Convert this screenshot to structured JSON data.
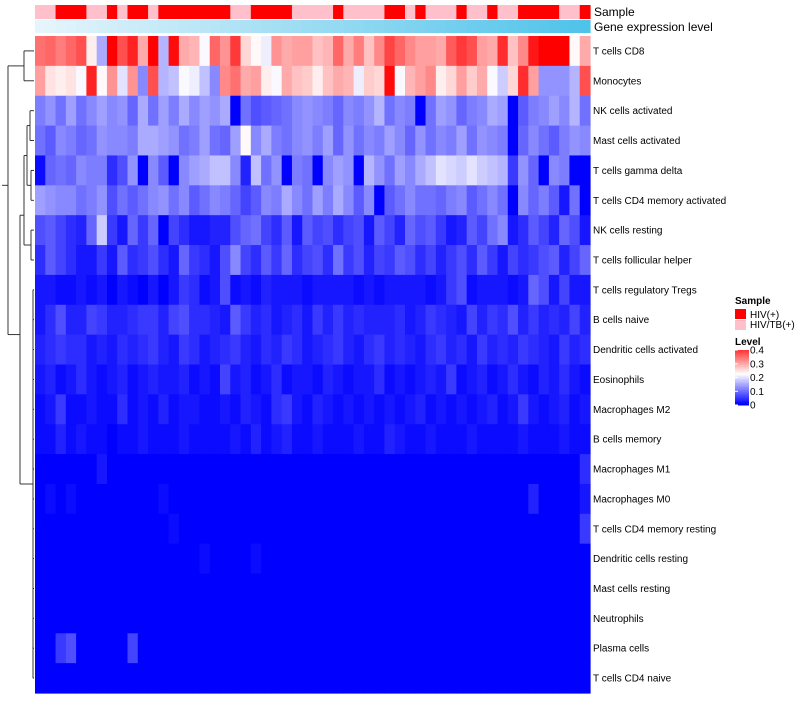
{
  "annotation_titles": {
    "sample": "Sample",
    "gene_expression": "Gene expression level"
  },
  "legend": {
    "sample_title": "Sample",
    "sample_items": [
      {
        "label": "HIV(+)",
        "color": "#ff0000"
      },
      {
        "label": "HIV/TB(+)",
        "color": "#ffc0cb"
      }
    ],
    "level_title": "Level",
    "level_ticks": [
      "0.4",
      "0.3",
      "0.2",
      "0.1",
      "0"
    ],
    "level_tick_values": [
      0.4,
      0.3,
      0.2,
      0.1,
      0
    ]
  },
  "colors": {
    "low": "#0000ff",
    "mid": "#ffffff",
    "high": "#ff0000",
    "hiv": "#ff0000",
    "hivtb": "#ffc0cb",
    "gene_low": "#e6f5fb",
    "gene_high": "#4fc3ea",
    "dendrogram": "#222222"
  },
  "chart_data": {
    "type": "heatmap",
    "title": "",
    "color_scale_max": 0.45,
    "row_labels": [
      "T cells CD8",
      "Monocytes",
      "NK cells activated",
      "Mast cells activated",
      "T cells gamma delta",
      "T cells CD4 memory activated",
      "NK cells resting",
      "T cells follicular helper",
      "T cells regulatory  Tregs",
      "B cells naive",
      "Dendritic cells activated",
      "Eosinophils",
      "Macrophages M2",
      "B cells memory",
      "Macrophages M1",
      "Macrophages M0",
      "T cells CD4 memory resting",
      "Dendritic cells resting",
      "Mast cells resting",
      "Neutrophils",
      "Plasma cells",
      "T cells CD4 naive"
    ],
    "sample_groups": [
      "HIV/TB(+)",
      "HIV/TB(+)",
      "HIV(+)",
      "HIV(+)",
      "HIV(+)",
      "HIV/TB(+)",
      "HIV/TB(+)",
      "HIV(+)",
      "HIV/TB(+)",
      "HIV(+)",
      "HIV(+)",
      "HIV/TB(+)",
      "HIV(+)",
      "HIV(+)",
      "HIV(+)",
      "HIV(+)",
      "HIV(+)",
      "HIV(+)",
      "HIV(+)",
      "HIV/TB(+)",
      "HIV/TB(+)",
      "HIV(+)",
      "HIV(+)",
      "HIV(+)",
      "HIV(+)",
      "HIV/TB(+)",
      "HIV/TB(+)",
      "HIV/TB(+)",
      "HIV/TB(+)",
      "HIV(+)",
      "HIV/TB(+)",
      "HIV/TB(+)",
      "HIV/TB(+)",
      "HIV/TB(+)",
      "HIV(+)",
      "HIV(+)",
      "HIV/TB(+)",
      "HIV(+)",
      "HIV/TB(+)",
      "HIV/TB(+)",
      "HIV/TB(+)",
      "HIV(+)",
      "HIV/TB(+)",
      "HIV/TB(+)",
      "HIV(+)",
      "HIV/TB(+)",
      "HIV/TB(+)",
      "HIV(+)",
      "HIV(+)",
      "HIV(+)",
      "HIV(+)",
      "HIV/TB(+)",
      "HIV/TB(+)",
      "HIV(+)"
    ],
    "gene_expression_level": [
      0.0,
      0.019,
      0.038,
      0.057,
      0.075,
      0.094,
      0.113,
      0.132,
      0.151,
      0.17,
      0.189,
      0.208,
      0.226,
      0.245,
      0.264,
      0.283,
      0.302,
      0.321,
      0.34,
      0.358,
      0.377,
      0.396,
      0.415,
      0.434,
      0.453,
      0.472,
      0.491,
      0.509,
      0.528,
      0.547,
      0.566,
      0.585,
      0.604,
      0.623,
      0.642,
      0.66,
      0.679,
      0.698,
      0.717,
      0.736,
      0.755,
      0.774,
      0.792,
      0.811,
      0.83,
      0.849,
      0.868,
      0.887,
      0.906,
      0.925,
      0.943,
      0.962,
      0.981,
      1.0
    ],
    "values": [
      [
        0.35,
        0.36,
        0.34,
        0.36,
        0.38,
        0.24,
        0.15,
        0.45,
        0.38,
        0.42,
        0.3,
        0.45,
        0.16,
        0.44,
        0.3,
        0.29,
        0.22,
        0.36,
        0.32,
        0.4,
        0.26,
        0.23,
        0.21,
        0.32,
        0.3,
        0.31,
        0.31,
        0.28,
        0.29,
        0.36,
        0.3,
        0.34,
        0.28,
        0.33,
        0.39,
        0.36,
        0.33,
        0.31,
        0.31,
        0.3,
        0.37,
        0.4,
        0.38,
        0.31,
        0.3,
        0.41,
        0.28,
        0.33,
        0.43,
        0.45,
        0.45,
        0.45,
        0.23,
        0.3
      ],
      [
        0.31,
        0.25,
        0.24,
        0.25,
        0.22,
        0.42,
        0.23,
        0.32,
        0.2,
        0.32,
        0.12,
        0.38,
        0.16,
        0.17,
        0.22,
        0.21,
        0.17,
        0.12,
        0.33,
        0.35,
        0.3,
        0.31,
        0.24,
        0.22,
        0.3,
        0.28,
        0.27,
        0.24,
        0.28,
        0.3,
        0.29,
        0.21,
        0.27,
        0.26,
        0.44,
        0.22,
        0.29,
        0.31,
        0.33,
        0.24,
        0.26,
        0.31,
        0.27,
        0.3,
        0.22,
        0.18,
        0.26,
        0.41,
        0.31,
        0.13,
        0.13,
        0.13,
        0.16,
        0.38
      ],
      [
        0.11,
        0.13,
        0.1,
        0.14,
        0.1,
        0.12,
        0.14,
        0.12,
        0.13,
        0.09,
        0.15,
        0.1,
        0.14,
        0.11,
        0.15,
        0.12,
        0.14,
        0.13,
        0.15,
        0.0,
        0.1,
        0.07,
        0.08,
        0.09,
        0.1,
        0.12,
        0.13,
        0.12,
        0.11,
        0.09,
        0.12,
        0.11,
        0.13,
        0.16,
        0.1,
        0.12,
        0.11,
        0.0,
        0.1,
        0.14,
        0.13,
        0.09,
        0.11,
        0.12,
        0.15,
        0.14,
        0.0,
        0.08,
        0.11,
        0.12,
        0.14,
        0.12,
        0.16,
        0.1
      ],
      [
        0.1,
        0.08,
        0.12,
        0.11,
        0.09,
        0.1,
        0.13,
        0.12,
        0.12,
        0.11,
        0.15,
        0.15,
        0.14,
        0.13,
        0.1,
        0.11,
        0.14,
        0.1,
        0.09,
        0.14,
        0.23,
        0.12,
        0.15,
        0.11,
        0.1,
        0.12,
        0.13,
        0.11,
        0.14,
        0.09,
        0.13,
        0.1,
        0.12,
        0.11,
        0.14,
        0.12,
        0.09,
        0.13,
        0.1,
        0.12,
        0.11,
        0.14,
        0.1,
        0.13,
        0.12,
        0.11,
        0.0,
        0.09,
        0.12,
        0.1,
        0.08,
        0.11,
        0.13,
        0.12
      ],
      [
        0.01,
        0.09,
        0.1,
        0.09,
        0.12,
        0.11,
        0.11,
        0.04,
        0.07,
        0.13,
        0.0,
        0.12,
        0.08,
        0.0,
        0.12,
        0.14,
        0.15,
        0.17,
        0.17,
        0.12,
        0.03,
        0.17,
        0.1,
        0.13,
        0.0,
        0.11,
        0.1,
        0.0,
        0.12,
        0.14,
        0.13,
        0.0,
        0.16,
        0.13,
        0.1,
        0.14,
        0.12,
        0.15,
        0.17,
        0.2,
        0.19,
        0.18,
        0.2,
        0.18,
        0.17,
        0.16,
        0.05,
        0.13,
        0.09,
        0.0,
        0.12,
        0.11,
        0.0,
        0.0
      ],
      [
        0.14,
        0.13,
        0.12,
        0.12,
        0.1,
        0.11,
        0.13,
        0.07,
        0.1,
        0.08,
        0.1,
        0.12,
        0.13,
        0.1,
        0.12,
        0.08,
        0.1,
        0.12,
        0.11,
        0.09,
        0.06,
        0.08,
        0.12,
        0.11,
        0.15,
        0.12,
        0.1,
        0.14,
        0.11,
        0.15,
        0.12,
        0.08,
        0.12,
        0.0,
        0.08,
        0.1,
        0.12,
        0.1,
        0.1,
        0.09,
        0.11,
        0.12,
        0.08,
        0.1,
        0.12,
        0.1,
        0.0,
        0.12,
        0.09,
        0.11,
        0.08,
        0.02,
        0.1,
        0.0
      ],
      [
        0.07,
        0.08,
        0.06,
        0.04,
        0.03,
        0.09,
        0.18,
        0.05,
        0.02,
        0.09,
        0.05,
        0.09,
        0.0,
        0.06,
        0.04,
        0.02,
        0.02,
        0.03,
        0.03,
        0.07,
        0.09,
        0.1,
        0.06,
        0.04,
        0.08,
        0.02,
        0.08,
        0.06,
        0.07,
        0.04,
        0.06,
        0.07,
        0.02,
        0.08,
        0.06,
        0.03,
        0.09,
        0.07,
        0.08,
        0.05,
        0.02,
        0.03,
        0.08,
        0.06,
        0.1,
        0.12,
        0.02,
        0.04,
        0.08,
        0.06,
        0.03,
        0.09,
        0.07,
        0.02
      ],
      [
        0.04,
        0.08,
        0.06,
        0.04,
        0.02,
        0.02,
        0.05,
        0.02,
        0.08,
        0.04,
        0.05,
        0.07,
        0.04,
        0.02,
        0.09,
        0.05,
        0.04,
        0.02,
        0.07,
        0.12,
        0.06,
        0.04,
        0.08,
        0.05,
        0.09,
        0.04,
        0.06,
        0.07,
        0.04,
        0.1,
        0.05,
        0.07,
        0.03,
        0.06,
        0.05,
        0.08,
        0.07,
        0.04,
        0.06,
        0.03,
        0.05,
        0.07,
        0.04,
        0.08,
        0.05,
        0.02,
        0.06,
        0.04,
        0.05,
        0.07,
        0.08,
        0.03,
        0.06,
        0.09
      ],
      [
        0.02,
        0.02,
        0.01,
        0.01,
        0.02,
        0.01,
        0.02,
        0.0,
        0.02,
        0.01,
        0.0,
        0.02,
        0.0,
        0.02,
        0.05,
        0.04,
        0.01,
        0.02,
        0.07,
        0.01,
        0.02,
        0.01,
        0.03,
        0.02,
        0.02,
        0.02,
        0.01,
        0.02,
        0.02,
        0.02,
        0.02,
        0.01,
        0.02,
        0.01,
        0.02,
        0.02,
        0.02,
        0.02,
        0.01,
        0.02,
        0.05,
        0.07,
        0.01,
        0.02,
        0.02,
        0.02,
        0.01,
        0.02,
        0.09,
        0.07,
        0.02,
        0.06,
        0.02,
        0.02
      ],
      [
        0.02,
        0.04,
        0.07,
        0.03,
        0.03,
        0.06,
        0.05,
        0.03,
        0.03,
        0.04,
        0.05,
        0.05,
        0.03,
        0.06,
        0.07,
        0.04,
        0.04,
        0.03,
        0.02,
        0.08,
        0.05,
        0.03,
        0.04,
        0.02,
        0.03,
        0.04,
        0.02,
        0.05,
        0.03,
        0.05,
        0.03,
        0.04,
        0.03,
        0.03,
        0.03,
        0.04,
        0.02,
        0.03,
        0.05,
        0.04,
        0.03,
        0.02,
        0.06,
        0.03,
        0.05,
        0.04,
        0.07,
        0.03,
        0.05,
        0.03,
        0.04,
        0.03,
        0.06,
        0.03
      ],
      [
        0.03,
        0.04,
        0.05,
        0.04,
        0.04,
        0.02,
        0.03,
        0.02,
        0.04,
        0.03,
        0.04,
        0.05,
        0.03,
        0.02,
        0.05,
        0.04,
        0.02,
        0.03,
        0.04,
        0.05,
        0.03,
        0.02,
        0.04,
        0.03,
        0.05,
        0.04,
        0.02,
        0.03,
        0.04,
        0.05,
        0.03,
        0.02,
        0.04,
        0.05,
        0.03,
        0.04,
        0.03,
        0.02,
        0.04,
        0.05,
        0.03,
        0.04,
        0.02,
        0.05,
        0.03,
        0.04,
        0.03,
        0.05,
        0.04,
        0.03,
        0.02,
        0.05,
        0.03,
        0.04
      ],
      [
        0.02,
        0.03,
        0.01,
        0.02,
        0.04,
        0.02,
        0.01,
        0.02,
        0.03,
        0.01,
        0.02,
        0.03,
        0.02,
        0.02,
        0.03,
        0.01,
        0.02,
        0.01,
        0.06,
        0.02,
        0.03,
        0.01,
        0.02,
        0.04,
        0.01,
        0.02,
        0.02,
        0.01,
        0.03,
        0.02,
        0.01,
        0.02,
        0.02,
        0.04,
        0.01,
        0.02,
        0.01,
        0.02,
        0.03,
        0.02,
        0.05,
        0.01,
        0.02,
        0.03,
        0.01,
        0.02,
        0.04,
        0.02,
        0.01,
        0.03,
        0.02,
        0.04,
        0.02,
        0.01
      ],
      [
        0.01,
        0.02,
        0.05,
        0.01,
        0.01,
        0.02,
        0.01,
        0.01,
        0.04,
        0.01,
        0.02,
        0.01,
        0.03,
        0.01,
        0.02,
        0.02,
        0.01,
        0.01,
        0.02,
        0.01,
        0.03,
        0.02,
        0.01,
        0.04,
        0.05,
        0.02,
        0.01,
        0.03,
        0.02,
        0.01,
        0.02,
        0.01,
        0.02,
        0.01,
        0.02,
        0.01,
        0.02,
        0.03,
        0.01,
        0.02,
        0.01,
        0.02,
        0.01,
        0.02,
        0.03,
        0.01,
        0.02,
        0.05,
        0.02,
        0.01,
        0.02,
        0.03,
        0.01,
        0.02
      ],
      [
        0.01,
        0.01,
        0.03,
        0.01,
        0.02,
        0.01,
        0.01,
        0.0,
        0.01,
        0.01,
        0.02,
        0.01,
        0.01,
        0.01,
        0.02,
        0.01,
        0.01,
        0.01,
        0.01,
        0.02,
        0.01,
        0.03,
        0.01,
        0.02,
        0.03,
        0.01,
        0.01,
        0.02,
        0.01,
        0.01,
        0.01,
        0.02,
        0.01,
        0.01,
        0.03,
        0.02,
        0.01,
        0.01,
        0.02,
        0.01,
        0.01,
        0.01,
        0.02,
        0.01,
        0.01,
        0.01,
        0.01,
        0.02,
        0.01,
        0.01,
        0.01,
        0.02,
        0.01,
        0.01
      ],
      [
        0.0,
        0.0,
        0.0,
        0.0,
        0.0,
        0.0,
        0.02,
        0.0,
        0.0,
        0.0,
        0.0,
        0.0,
        0.0,
        0.0,
        0.0,
        0.0,
        0.0,
        0.0,
        0.0,
        0.0,
        0.0,
        0.0,
        0.0,
        0.0,
        0.0,
        0.0,
        0.0,
        0.0,
        0.0,
        0.0,
        0.0,
        0.0,
        0.0,
        0.0,
        0.0,
        0.0,
        0.0,
        0.0,
        0.0,
        0.0,
        0.0,
        0.0,
        0.0,
        0.0,
        0.0,
        0.0,
        0.0,
        0.0,
        0.0,
        0.0,
        0.0,
        0.0,
        0.0,
        0.04
      ],
      [
        0.0,
        0.01,
        0.0,
        0.01,
        0.0,
        0.0,
        0.0,
        0.0,
        0.0,
        0.0,
        0.0,
        0.0,
        0.01,
        0.0,
        0.0,
        0.0,
        0.0,
        0.0,
        0.0,
        0.0,
        0.0,
        0.0,
        0.0,
        0.0,
        0.0,
        0.0,
        0.0,
        0.0,
        0.0,
        0.0,
        0.0,
        0.0,
        0.0,
        0.0,
        0.0,
        0.0,
        0.0,
        0.0,
        0.0,
        0.0,
        0.0,
        0.0,
        0.0,
        0.0,
        0.0,
        0.0,
        0.0,
        0.0,
        0.03,
        0.0,
        0.0,
        0.0,
        0.0,
        0.02
      ],
      [
        0.0,
        0.0,
        0.0,
        0.0,
        0.0,
        0.0,
        0.0,
        0.0,
        0.0,
        0.0,
        0.0,
        0.0,
        0.0,
        0.01,
        0.0,
        0.0,
        0.0,
        0.0,
        0.0,
        0.0,
        0.0,
        0.0,
        0.0,
        0.0,
        0.0,
        0.0,
        0.0,
        0.0,
        0.0,
        0.0,
        0.0,
        0.0,
        0.0,
        0.0,
        0.0,
        0.0,
        0.0,
        0.0,
        0.0,
        0.0,
        0.0,
        0.0,
        0.0,
        0.0,
        0.0,
        0.0,
        0.0,
        0.0,
        0.0,
        0.0,
        0.0,
        0.0,
        0.0,
        0.05
      ],
      [
        0.0,
        0.0,
        0.0,
        0.0,
        0.0,
        0.0,
        0.0,
        0.0,
        0.0,
        0.0,
        0.0,
        0.0,
        0.0,
        0.0,
        0.0,
        0.0,
        0.01,
        0.0,
        0.0,
        0.0,
        0.0,
        0.01,
        0.0,
        0.0,
        0.0,
        0.0,
        0.0,
        0.0,
        0.0,
        0.0,
        0.0,
        0.0,
        0.0,
        0.0,
        0.0,
        0.0,
        0.0,
        0.0,
        0.0,
        0.0,
        0.0,
        0.0,
        0.0,
        0.0,
        0.0,
        0.0,
        0.0,
        0.0,
        0.0,
        0.0,
        0.0,
        0.0,
        0.0,
        0.0
      ],
      [
        0.0,
        0.0,
        0.0,
        0.0,
        0.0,
        0.0,
        0.0,
        0.0,
        0.0,
        0.0,
        0.0,
        0.0,
        0.0,
        0.0,
        0.0,
        0.0,
        0.0,
        0.0,
        0.0,
        0.0,
        0.0,
        0.0,
        0.0,
        0.0,
        0.0,
        0.0,
        0.0,
        0.0,
        0.0,
        0.0,
        0.0,
        0.0,
        0.0,
        0.0,
        0.0,
        0.0,
        0.0,
        0.0,
        0.0,
        0.0,
        0.0,
        0.0,
        0.0,
        0.0,
        0.0,
        0.0,
        0.0,
        0.0,
        0.0,
        0.0,
        0.0,
        0.0,
        0.0,
        0.0
      ],
      [
        0.0,
        0.0,
        0.0,
        0.0,
        0.0,
        0.0,
        0.0,
        0.0,
        0.0,
        0.0,
        0.0,
        0.0,
        0.0,
        0.0,
        0.0,
        0.0,
        0.0,
        0.0,
        0.0,
        0.0,
        0.0,
        0.0,
        0.0,
        0.0,
        0.0,
        0.0,
        0.0,
        0.0,
        0.0,
        0.0,
        0.0,
        0.0,
        0.0,
        0.0,
        0.0,
        0.0,
        0.0,
        0.0,
        0.0,
        0.0,
        0.0,
        0.0,
        0.0,
        0.0,
        0.0,
        0.0,
        0.0,
        0.0,
        0.0,
        0.0,
        0.0,
        0.0,
        0.0,
        0.0
      ],
      [
        0.0,
        0.0,
        0.05,
        0.07,
        0.0,
        0.0,
        0.0,
        0.0,
        0.0,
        0.06,
        0.0,
        0.0,
        0.0,
        0.0,
        0.0,
        0.0,
        0.0,
        0.0,
        0.0,
        0.0,
        0.0,
        0.0,
        0.0,
        0.0,
        0.0,
        0.0,
        0.0,
        0.0,
        0.0,
        0.0,
        0.0,
        0.0,
        0.0,
        0.0,
        0.0,
        0.0,
        0.0,
        0.0,
        0.0,
        0.0,
        0.0,
        0.0,
        0.0,
        0.0,
        0.0,
        0.0,
        0.0,
        0.0,
        0.0,
        0.0,
        0.0,
        0.0,
        0.0,
        0.0
      ],
      [
        0.0,
        0.0,
        0.0,
        0.0,
        0.0,
        0.0,
        0.0,
        0.0,
        0.0,
        0.0,
        0.0,
        0.0,
        0.0,
        0.0,
        0.0,
        0.0,
        0.0,
        0.0,
        0.0,
        0.0,
        0.0,
        0.0,
        0.0,
        0.0,
        0.0,
        0.0,
        0.0,
        0.0,
        0.0,
        0.0,
        0.0,
        0.0,
        0.0,
        0.0,
        0.0,
        0.0,
        0.0,
        0.0,
        0.0,
        0.0,
        0.0,
        0.0,
        0.0,
        0.0,
        0.0,
        0.0,
        0.0,
        0.0,
        0.0,
        0.0,
        0.0,
        0.0,
        0.0,
        0.0
      ]
    ]
  }
}
